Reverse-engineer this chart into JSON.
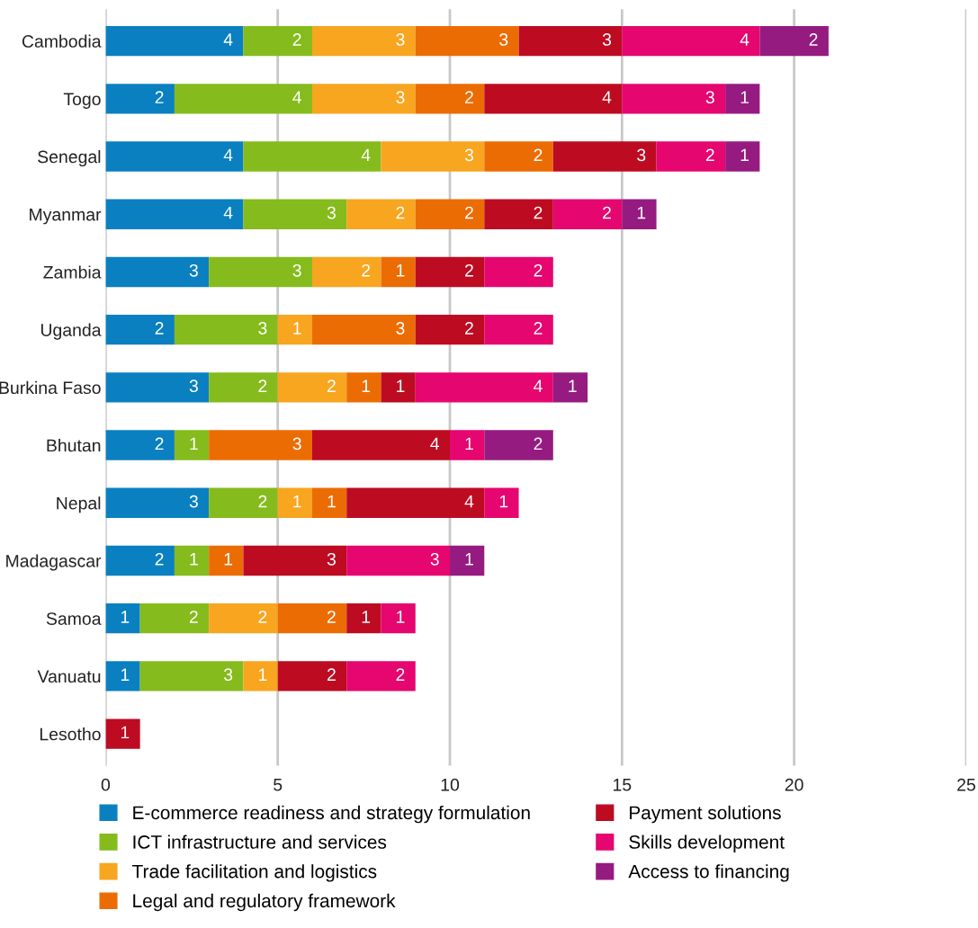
{
  "chart_data": {
    "type": "bar",
    "orientation": "horizontal",
    "stacked": true,
    "categories": [
      "Cambodia",
      "Togo",
      "Senegal",
      "Myanmar",
      "Zambia",
      "Uganda",
      "Burkina Faso",
      "Bhutan",
      "Nepal",
      "Madagascar",
      "Samoa",
      "Vanuatu",
      "Lesotho"
    ],
    "series": [
      {
        "name": "E-commerce readiness and strategy formulation",
        "color": "#0a80c0",
        "values": [
          4,
          2,
          4,
          4,
          3,
          2,
          3,
          2,
          3,
          2,
          1,
          1,
          null
        ],
        "value_labels": [
          "4",
          "2",
          "4",
          "4",
          "3",
          "2",
          "3",
          "2",
          "3",
          "2",
          "1",
          "1",
          null
        ]
      },
      {
        "name": "ICT infrastructure and services",
        "color": "#85bb1c",
        "values": [
          2,
          4,
          4,
          3,
          3,
          3,
          2,
          1,
          2,
          1,
          2,
          3,
          null
        ],
        "value_labels": [
          "2",
          "4",
          "4",
          "3",
          "3",
          "3",
          "2",
          "1",
          "2",
          "1",
          "2",
          "3",
          null
        ]
      },
      {
        "name": "Trade facilitation and logistics",
        "color": "#f8a51f",
        "values": [
          3,
          3,
          3,
          2,
          2,
          1,
          2,
          null,
          1,
          null,
          2,
          1,
          null
        ],
        "value_labels": [
          "3",
          "3",
          "3",
          "2",
          "2",
          "1",
          "2",
          null,
          "1",
          null,
          "2",
          "1",
          null
        ]
      },
      {
        "name": "Legal and regulatory framework",
        "color": "#ec6c04",
        "values": [
          3,
          2,
          2,
          2,
          1,
          3,
          1,
          3,
          1,
          1,
          2,
          null,
          null
        ],
        "value_labels": [
          "3",
          "2",
          "2",
          "2",
          "1",
          "3",
          "1",
          "3",
          "1",
          "1",
          "2",
          null,
          null
        ]
      },
      {
        "name": "Payment solutions",
        "color": "#bd0b22",
        "values": [
          3,
          4,
          3,
          2,
          2,
          2,
          1,
          4,
          4,
          3,
          1,
          2,
          1
        ],
        "value_labels": [
          "3",
          "4",
          "3",
          "2",
          "2",
          "2",
          "1",
          "4",
          "4",
          "3",
          "1",
          "2",
          "1"
        ]
      },
      {
        "name": "Skills development",
        "color": "#e5066f",
        "values": [
          4,
          3,
          2,
          2,
          2,
          2,
          4,
          1,
          1,
          3,
          1,
          2,
          null
        ],
        "value_labels": [
          "4",
          "3",
          "2",
          "2",
          "2",
          "2",
          "4",
          "1",
          "1",
          "3",
          "1",
          "2",
          null
        ]
      },
      {
        "name": "Access to financing",
        "color": "#951b80",
        "values": [
          2,
          1,
          1,
          1,
          null,
          null,
          1,
          2,
          null,
          1,
          null,
          null,
          null
        ],
        "value_labels": [
          "2",
          "1",
          "1",
          "1",
          null,
          null,
          "1",
          "2",
          null,
          "1",
          null,
          null,
          null
        ]
      }
    ],
    "xlim": [
      0,
      25
    ],
    "xticks": [
      0,
      5,
      10,
      15,
      20,
      25
    ],
    "grid": "x",
    "legend": "bottom"
  }
}
